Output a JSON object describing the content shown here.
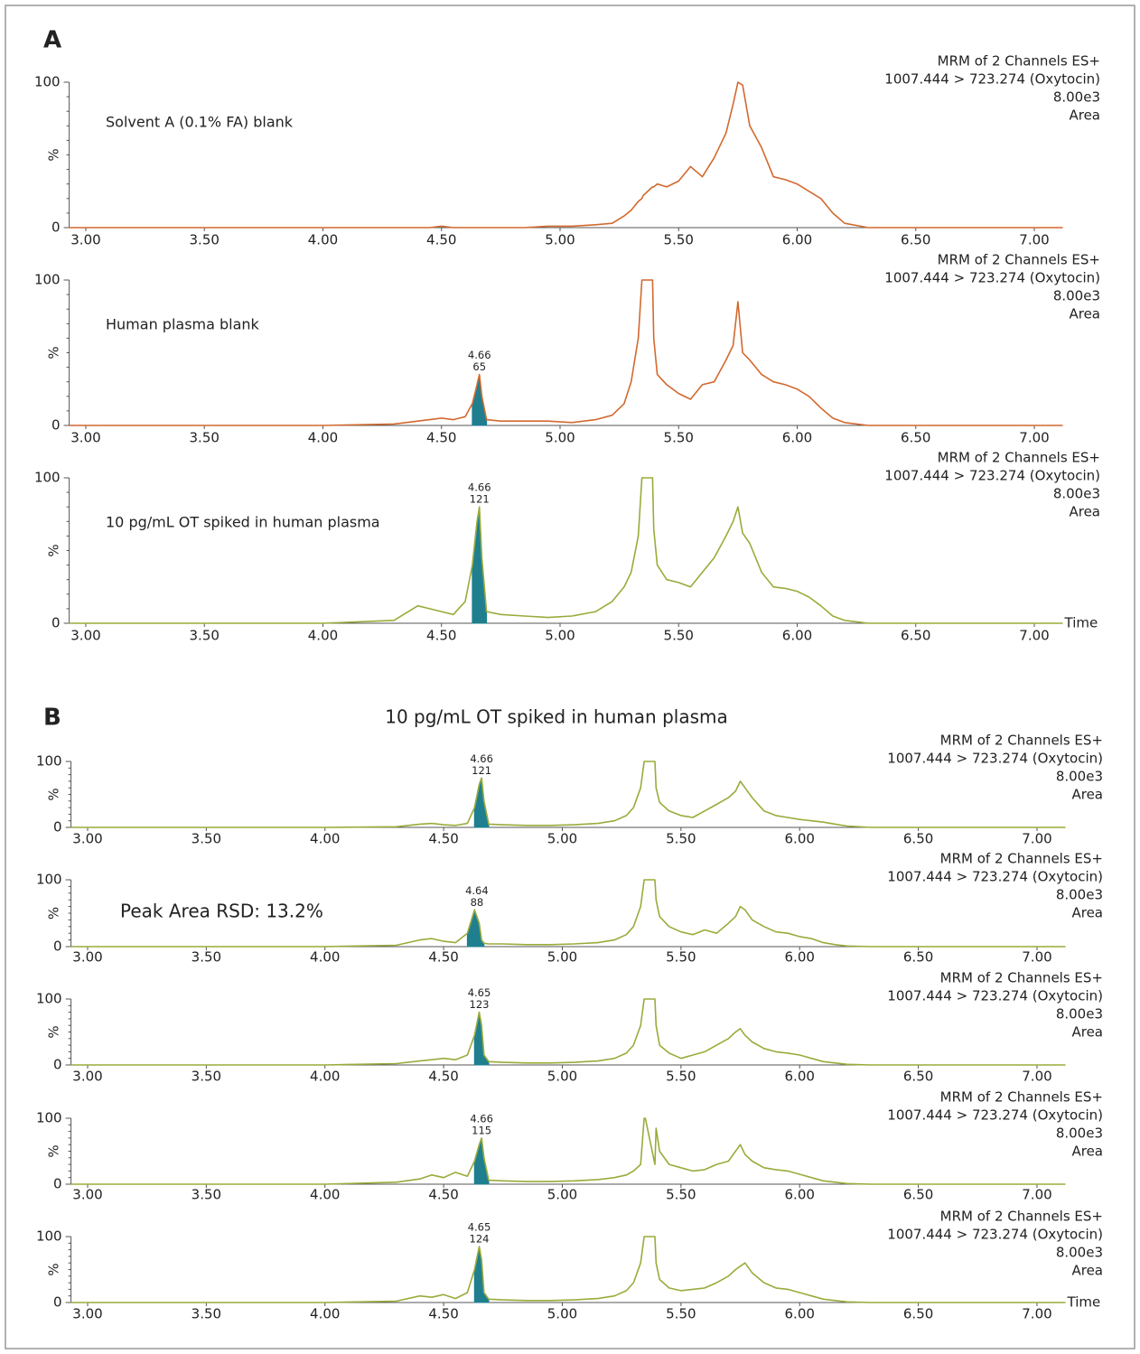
{
  "sections": [
    {
      "label": "A"
    },
    {
      "label": "B",
      "title": "10 pg/mL OT spiked in human plasma",
      "note": "Peak Area RSD: 13.2%"
    }
  ],
  "chart_data": [
    {
      "type": "line",
      "color": "#d2692f",
      "annotation": "Solvent A (0.1% FA) blank",
      "header": [
        "MRM of 2 Channels ES+",
        "1007.444 > 723.274 (Oxytocin)",
        "8.00e3",
        "Area"
      ],
      "x": [
        2.93,
        3.5,
        4.0,
        4.3,
        4.4,
        4.45,
        4.5,
        4.55,
        4.6,
        4.63,
        4.65,
        4.66,
        4.67,
        4.69,
        4.75,
        4.85,
        4.95,
        5.05,
        5.15,
        5.22,
        5.27,
        5.3,
        5.33,
        5.345,
        5.35,
        5.39,
        5.395,
        5.41,
        5.45,
        5.5,
        5.55,
        5.6,
        5.65,
        5.7,
        5.73,
        5.75,
        5.77,
        5.8,
        5.85,
        5.9,
        5.95,
        6.0,
        6.05,
        6.1,
        6.15,
        6.2,
        6.3,
        6.5,
        7.12
      ],
      "values": [
        0,
        0,
        0,
        0,
        0,
        0,
        1,
        0,
        0,
        0,
        0,
        0,
        0,
        0,
        0,
        0,
        1,
        1,
        2,
        3,
        8,
        12,
        18,
        20,
        22,
        28,
        28,
        30,
        28,
        32,
        42,
        35,
        48,
        65,
        85,
        100,
        98,
        70,
        55,
        35,
        33,
        30,
        25,
        20,
        10,
        3,
        0,
        0,
        0
      ],
      "xlim": [
        2.93,
        7.12
      ],
      "xticks": [
        {
          "value": 3,
          "label": "3.00"
        },
        {
          "value": 3.5,
          "label": "3.50"
        },
        {
          "value": 4,
          "label": "4.00"
        },
        {
          "value": 4.5,
          "label": "4.50"
        },
        {
          "value": 5,
          "label": "5.00"
        },
        {
          "value": 5.5,
          "label": "5.50"
        },
        {
          "value": 6,
          "label": "6.00"
        },
        {
          "value": 6.5,
          "label": "6.50"
        },
        {
          "value": 7,
          "label": "7.00"
        }
      ],
      "ylim": [
        0,
        100
      ],
      "yticks": [
        0,
        100
      ],
      "ylabel": "%"
    },
    {
      "type": "line",
      "color": "#d2692f",
      "annotation": "Human plasma blank",
      "header": [
        "MRM of 2 Channels ES+",
        "1007.444 > 723.274 (Oxytocin)",
        "8.00e3",
        "Area"
      ],
      "peak": {
        "time": 4.66,
        "area": 65
      },
      "x": [
        2.93,
        3.5,
        4.0,
        4.3,
        4.4,
        4.45,
        4.5,
        4.55,
        4.6,
        4.63,
        4.65,
        4.66,
        4.67,
        4.69,
        4.75,
        4.85,
        4.95,
        5.05,
        5.15,
        5.22,
        5.27,
        5.3,
        5.33,
        5.345,
        5.35,
        5.39,
        5.395,
        5.41,
        5.45,
        5.5,
        5.55,
        5.6,
        5.65,
        5.7,
        5.73,
        5.75,
        5.77,
        5.8,
        5.85,
        5.9,
        5.95,
        6.0,
        6.05,
        6.1,
        6.15,
        6.2,
        6.3,
        6.5,
        7.12
      ],
      "values": [
        0,
        0,
        0,
        1,
        3,
        4,
        5,
        4,
        6,
        15,
        28,
        35,
        20,
        4,
        3,
        3,
        3,
        2,
        4,
        7,
        15,
        30,
        60,
        100,
        100,
        100,
        60,
        35,
        28,
        22,
        18,
        28,
        30,
        45,
        55,
        85,
        50,
        45,
        35,
        30,
        28,
        25,
        20,
        12,
        5,
        2,
        0,
        0,
        0
      ],
      "xlim": [
        2.93,
        7.12
      ],
      "xticks": [
        {
          "value": 3,
          "label": "3.00"
        },
        {
          "value": 3.5,
          "label": "3.50"
        },
        {
          "value": 4,
          "label": "4.00"
        },
        {
          "value": 4.5,
          "label": "4.50"
        },
        {
          "value": 5,
          "label": "5.00"
        },
        {
          "value": 5.5,
          "label": "5.50"
        },
        {
          "value": 6,
          "label": "6.00"
        },
        {
          "value": 6.5,
          "label": "6.50"
        },
        {
          "value": 7,
          "label": "7.00"
        }
      ],
      "ylim": [
        0,
        100
      ],
      "yticks": [
        0,
        100
      ],
      "ylabel": "%"
    },
    {
      "type": "line",
      "color": "#9aab3a",
      "annotation": "10 pg/mL OT spiked in human plasma",
      "xlabel": "Time",
      "header": [
        "MRM of 2 Channels ES+",
        "1007.444 > 723.274 (Oxytocin)",
        "8.00e3",
        "Area"
      ],
      "peak": {
        "time": 4.66,
        "area": 121
      },
      "x": [
        2.93,
        3.5,
        4.0,
        4.3,
        4.4,
        4.45,
        4.5,
        4.55,
        4.6,
        4.63,
        4.65,
        4.66,
        4.67,
        4.69,
        4.75,
        4.85,
        4.95,
        5.05,
        5.15,
        5.22,
        5.27,
        5.3,
        5.33,
        5.345,
        5.35,
        5.39,
        5.395,
        5.41,
        5.45,
        5.5,
        5.55,
        5.6,
        5.65,
        5.7,
        5.73,
        5.75,
        5.77,
        5.8,
        5.85,
        5.9,
        5.95,
        6.0,
        6.05,
        6.1,
        6.15,
        6.2,
        6.3,
        6.5,
        7.12
      ],
      "values": [
        0,
        0,
        0,
        2,
        12,
        10,
        8,
        6,
        15,
        40,
        70,
        80,
        45,
        8,
        6,
        5,
        4,
        5,
        8,
        15,
        25,
        35,
        60,
        100,
        100,
        100,
        65,
        40,
        30,
        28,
        25,
        35,
        45,
        60,
        70,
        80,
        62,
        55,
        35,
        25,
        24,
        22,
        18,
        12,
        5,
        2,
        0,
        0,
        0
      ],
      "xlim": [
        2.93,
        7.12
      ],
      "xticks": [
        {
          "value": 3,
          "label": "3.00"
        },
        {
          "value": 3.5,
          "label": "3.50"
        },
        {
          "value": 4,
          "label": "4.00"
        },
        {
          "value": 4.5,
          "label": "4.50"
        },
        {
          "value": 5,
          "label": "5.00"
        },
        {
          "value": 5.5,
          "label": "5.50"
        },
        {
          "value": 6,
          "label": "6.00"
        },
        {
          "value": 6.5,
          "label": "6.50"
        },
        {
          "value": 7,
          "label": "7.00"
        }
      ],
      "ylim": [
        0,
        100
      ],
      "yticks": [
        0,
        100
      ],
      "ylabel": "%"
    },
    {
      "type": "line",
      "color": "#9aab3a",
      "header": [
        "MRM of 2 Channels ES+",
        "1007.444 > 723.274 (Oxytocin)",
        "8.00e3",
        "Area"
      ],
      "peak": {
        "time": 4.66,
        "area": 121
      },
      "x": [
        2.93,
        3.5,
        4.0,
        4.3,
        4.4,
        4.45,
        4.5,
        4.55,
        4.6,
        4.63,
        4.65,
        4.66,
        4.67,
        4.69,
        4.75,
        4.85,
        4.95,
        5.05,
        5.15,
        5.22,
        5.27,
        5.3,
        5.33,
        5.345,
        5.35,
        5.39,
        5.395,
        5.41,
        5.45,
        5.5,
        5.55,
        5.6,
        5.65,
        5.7,
        5.73,
        5.75,
        5.77,
        5.8,
        5.85,
        5.9,
        5.95,
        6.0,
        6.05,
        6.1,
        6.15,
        6.2,
        6.3,
        6.5,
        7.12
      ],
      "values": [
        0,
        0,
        0,
        1,
        5,
        6,
        4,
        3,
        6,
        30,
        65,
        75,
        40,
        5,
        4,
        3,
        3,
        4,
        6,
        10,
        18,
        30,
        60,
        100,
        100,
        100,
        60,
        38,
        25,
        18,
        15,
        25,
        35,
        45,
        55,
        70,
        60,
        45,
        25,
        18,
        15,
        12,
        10,
        8,
        5,
        2,
        0,
        0,
        0
      ],
      "xlim": [
        2.93,
        7.12
      ],
      "xticks": [
        {
          "value": 3,
          "label": "3.00"
        },
        {
          "value": 3.5,
          "label": "3.50"
        },
        {
          "value": 4,
          "label": "4.00"
        },
        {
          "value": 4.5,
          "label": "4.50"
        },
        {
          "value": 5,
          "label": "5.00"
        },
        {
          "value": 5.5,
          "label": "5.50"
        },
        {
          "value": 6,
          "label": "6.00"
        },
        {
          "value": 6.5,
          "label": "6.50"
        },
        {
          "value": 7,
          "label": "7.00"
        }
      ],
      "ylim": [
        0,
        100
      ],
      "yticks": [
        0,
        100
      ],
      "ylabel": "%"
    },
    {
      "type": "line",
      "color": "#9aab3a",
      "header": [
        "MRM of 2 Channels ES+",
        "1007.444 > 723.274 (Oxytocin)",
        "8.00e3",
        "Area"
      ],
      "peak": {
        "time": 4.64,
        "area": 88
      },
      "x": [
        2.93,
        3.5,
        4.0,
        4.3,
        4.4,
        4.45,
        4.5,
        4.55,
        4.6,
        4.63,
        4.65,
        4.66,
        4.67,
        4.69,
        4.75,
        4.85,
        4.95,
        5.05,
        5.15,
        5.22,
        5.27,
        5.3,
        5.33,
        5.345,
        5.35,
        5.39,
        5.395,
        5.41,
        5.45,
        5.5,
        5.55,
        5.6,
        5.65,
        5.7,
        5.73,
        5.75,
        5.77,
        5.8,
        5.85,
        5.9,
        5.95,
        6.0,
        6.05,
        6.1,
        6.15,
        6.2,
        6.3,
        6.5,
        7.12
      ],
      "values": [
        0,
        0,
        0,
        2,
        10,
        12,
        8,
        6,
        20,
        55,
        35,
        10,
        5,
        4,
        4,
        3,
        3,
        4,
        6,
        10,
        18,
        30,
        60,
        100,
        100,
        100,
        70,
        45,
        30,
        22,
        18,
        25,
        20,
        35,
        45,
        60,
        55,
        40,
        30,
        22,
        20,
        15,
        12,
        6,
        3,
        1,
        0,
        0,
        0
      ],
      "xlim": [
        2.93,
        7.12
      ],
      "xticks": [
        {
          "value": 3,
          "label": "3.00"
        },
        {
          "value": 3.5,
          "label": "3.50"
        },
        {
          "value": 4,
          "label": "4.00"
        },
        {
          "value": 4.5,
          "label": "4.50"
        },
        {
          "value": 5,
          "label": "5.00"
        },
        {
          "value": 5.5,
          "label": "5.50"
        },
        {
          "value": 6,
          "label": "6.00"
        },
        {
          "value": 6.5,
          "label": "6.50"
        },
        {
          "value": 7,
          "label": "7.00"
        }
      ],
      "ylim": [
        0,
        100
      ],
      "yticks": [
        0,
        100
      ],
      "ylabel": "%"
    },
    {
      "type": "line",
      "color": "#9aab3a",
      "header": [
        "MRM of 2 Channels ES+",
        "1007.444 > 723.274 (Oxytocin)",
        "8.00e3",
        "Area"
      ],
      "peak": {
        "time": 4.65,
        "area": 123
      },
      "x": [
        2.93,
        3.5,
        4.0,
        4.3,
        4.4,
        4.45,
        4.5,
        4.55,
        4.6,
        4.63,
        4.65,
        4.66,
        4.67,
        4.69,
        4.75,
        4.85,
        4.95,
        5.05,
        5.15,
        5.22,
        5.27,
        5.3,
        5.33,
        5.345,
        5.35,
        5.39,
        5.395,
        5.41,
        5.45,
        5.5,
        5.55,
        5.6,
        5.65,
        5.7,
        5.73,
        5.75,
        5.77,
        5.8,
        5.85,
        5.9,
        5.95,
        6.0,
        6.05,
        6.1,
        6.15,
        6.2,
        6.3,
        6.5,
        7.12
      ],
      "values": [
        0,
        0,
        0,
        2,
        6,
        8,
        10,
        8,
        15,
        45,
        80,
        60,
        15,
        5,
        4,
        3,
        3,
        4,
        6,
        10,
        18,
        30,
        60,
        100,
        100,
        100,
        60,
        30,
        18,
        10,
        15,
        20,
        30,
        40,
        50,
        55,
        45,
        35,
        25,
        20,
        18,
        15,
        10,
        5,
        3,
        1,
        0,
        0,
        0
      ],
      "xlim": [
        2.93,
        7.12
      ],
      "xticks": [
        {
          "value": 3,
          "label": "3.00"
        },
        {
          "value": 3.5,
          "label": "3.50"
        },
        {
          "value": 4,
          "label": "4.00"
        },
        {
          "value": 4.5,
          "label": "4.50"
        },
        {
          "value": 5,
          "label": "5.00"
        },
        {
          "value": 5.5,
          "label": "5.50"
        },
        {
          "value": 6,
          "label": "6.00"
        },
        {
          "value": 6.5,
          "label": "6.50"
        },
        {
          "value": 7,
          "label": "7.00"
        }
      ],
      "ylim": [
        0,
        100
      ],
      "yticks": [
        0,
        100
      ],
      "ylabel": "%"
    },
    {
      "type": "line",
      "color": "#9aab3a",
      "header": [
        "MRM of 2 Channels ES+",
        "1007.444 > 723.274 (Oxytocin)",
        "8.00e3",
        "Area"
      ],
      "peak": {
        "time": 4.66,
        "area": 115
      },
      "x": [
        2.93,
        3.5,
        4.0,
        4.3,
        4.4,
        4.45,
        4.5,
        4.55,
        4.6,
        4.63,
        4.65,
        4.66,
        4.67,
        4.69,
        4.75,
        4.85,
        4.95,
        5.05,
        5.15,
        5.22,
        5.27,
        5.3,
        5.33,
        5.345,
        5.35,
        5.39,
        5.395,
        5.41,
        5.45,
        5.5,
        5.55,
        5.6,
        5.65,
        5.7,
        5.73,
        5.75,
        5.77,
        5.8,
        5.85,
        5.9,
        5.95,
        6.0,
        6.05,
        6.1,
        6.15,
        6.2,
        6.3,
        6.5,
        7.12
      ],
      "values": [
        0,
        0,
        0,
        3,
        8,
        14,
        10,
        18,
        12,
        35,
        60,
        70,
        40,
        6,
        5,
        4,
        4,
        5,
        7,
        10,
        14,
        20,
        30,
        100,
        100,
        30,
        85,
        50,
        30,
        25,
        20,
        22,
        30,
        35,
        50,
        60,
        45,
        35,
        25,
        22,
        20,
        15,
        10,
        5,
        3,
        1,
        0,
        0,
        0
      ],
      "xlim": [
        2.93,
        7.12
      ],
      "xticks": [
        {
          "value": 3,
          "label": "3.00"
        },
        {
          "value": 3.5,
          "label": "3.50"
        },
        {
          "value": 4,
          "label": "4.00"
        },
        {
          "value": 4.5,
          "label": "4.50"
        },
        {
          "value": 5,
          "label": "5.00"
        },
        {
          "value": 5.5,
          "label": "5.50"
        },
        {
          "value": 6,
          "label": "6.00"
        },
        {
          "value": 6.5,
          "label": "6.50"
        },
        {
          "value": 7,
          "label": "7.00"
        }
      ],
      "ylim": [
        0,
        100
      ],
      "yticks": [
        0,
        100
      ],
      "ylabel": "%"
    },
    {
      "type": "line",
      "color": "#9aab3a",
      "xlabel": "Time",
      "header": [
        "MRM of 2 Channels ES+",
        "1007.444 > 723.274 (Oxytocin)",
        "8.00e3",
        "Area"
      ],
      "peak": {
        "time": 4.65,
        "area": 124
      },
      "x": [
        2.93,
        3.5,
        4.0,
        4.3,
        4.4,
        4.45,
        4.5,
        4.55,
        4.6,
        4.63,
        4.65,
        4.66,
        4.67,
        4.69,
        4.75,
        4.85,
        4.95,
        5.05,
        5.15,
        5.22,
        5.27,
        5.3,
        5.33,
        5.345,
        5.35,
        5.39,
        5.395,
        5.41,
        5.45,
        5.5,
        5.55,
        5.6,
        5.65,
        5.7,
        5.73,
        5.75,
        5.77,
        5.8,
        5.85,
        5.9,
        5.95,
        6.0,
        6.05,
        6.1,
        6.15,
        6.2,
        6.3,
        6.5,
        7.12
      ],
      "values": [
        0,
        0,
        0,
        2,
        10,
        8,
        12,
        6,
        15,
        50,
        85,
        65,
        15,
        5,
        4,
        3,
        3,
        4,
        6,
        10,
        18,
        30,
        60,
        100,
        100,
        100,
        60,
        35,
        22,
        18,
        20,
        22,
        30,
        40,
        50,
        55,
        60,
        45,
        30,
        22,
        20,
        15,
        10,
        5,
        3,
        1,
        0,
        0,
        0
      ],
      "xlim": [
        2.93,
        7.12
      ],
      "xticks": [
        {
          "value": 3,
          "label": "3.00"
        },
        {
          "value": 3.5,
          "label": "3.50"
        },
        {
          "value": 4,
          "label": "4.00"
        },
        {
          "value": 4.5,
          "label": "4.50"
        },
        {
          "value": 5,
          "label": "5.00"
        },
        {
          "value": 5.5,
          "label": "5.50"
        },
        {
          "value": 6,
          "label": "6.00"
        },
        {
          "value": 6.5,
          "label": "6.50"
        },
        {
          "value": 7,
          "label": "7.00"
        }
      ],
      "ylim": [
        0,
        100
      ],
      "yticks": [
        0,
        100
      ],
      "ylabel": "%"
    }
  ]
}
